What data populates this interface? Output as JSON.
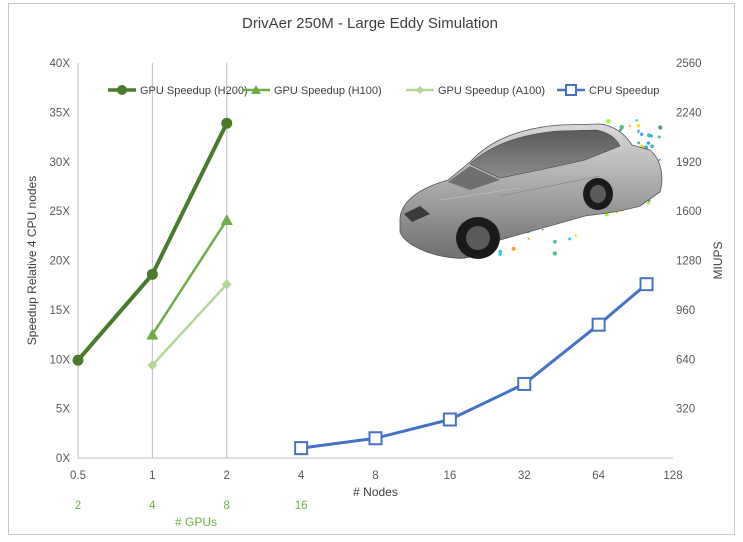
{
  "chart_data": {
    "type": "line",
    "title": "DrivAer 250M - Large Eddy Simulation",
    "xlabel": "# Nodes",
    "x2label": "# GPUs",
    "ylabel": "Speedup Relative 4 CPU nodes",
    "y2label": "MIUPS",
    "x_scale": "log2",
    "xlim": [
      0.5,
      128
    ],
    "x_ticks": [
      "0.5",
      "1",
      "2",
      "4",
      "8",
      "16",
      "32",
      "64",
      "128"
    ],
    "gpu_ticks": [
      {
        "x": 0.5,
        "label": "2"
      },
      {
        "x": 1,
        "label": "4"
      },
      {
        "x": 2,
        "label": "8"
      },
      {
        "x": 4,
        "label": "16"
      }
    ],
    "ylim": [
      0,
      40
    ],
    "y_ticks": [
      "0X",
      "5X",
      "10X",
      "15X",
      "20X",
      "25X",
      "30X",
      "35X",
      "40X"
    ],
    "y2lim": [
      0,
      2560
    ],
    "y2_ticks": [
      "320",
      "640",
      "960",
      "1280",
      "1600",
      "1920",
      "2240",
      "2560"
    ],
    "grid": "vertical lines at x = 1 and x = 2",
    "legend_position": "top",
    "series": [
      {
        "name": "GPU Speedup (H200)",
        "color": "#4a7b2c",
        "marker": "circle",
        "x": [
          0.5,
          1,
          2
        ],
        "y": [
          9.9,
          18.6,
          33.9
        ]
      },
      {
        "name": "GPU Speedup (H100)",
        "color": "#70ad47",
        "marker": "triangle",
        "x": [
          1,
          2
        ],
        "y": [
          12.5,
          24.1
        ]
      },
      {
        "name": "GPU Speedup (A100)",
        "color": "#b4d796",
        "marker": "diamond",
        "x": [
          1,
          2
        ],
        "y": [
          9.4,
          17.6
        ]
      },
      {
        "name": "CPU Speedup",
        "color": "#4472c4",
        "marker": "square-open",
        "x": [
          4,
          8,
          16,
          32,
          64,
          100
        ],
        "y": [
          1.0,
          2.0,
          3.9,
          7.5,
          13.5,
          17.6
        ]
      }
    ],
    "image": {
      "subject": "car-aerodynamics-render-icon"
    }
  }
}
